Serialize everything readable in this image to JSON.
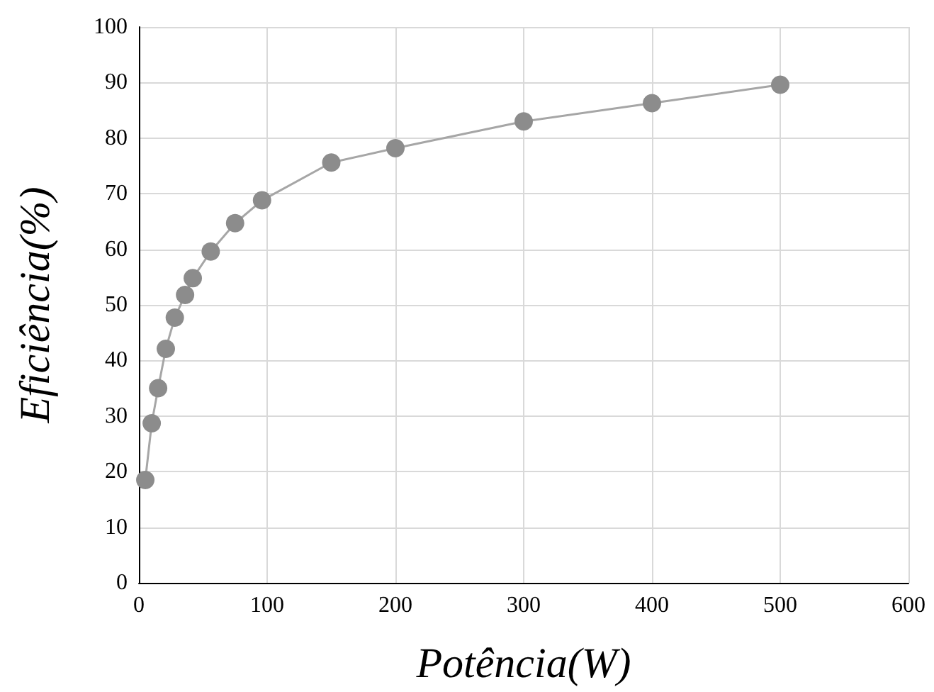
{
  "chart_data": {
    "type": "line",
    "xlabel": "Potência(W)",
    "ylabel": "Eficiência(%)",
    "x": [
      5,
      10,
      15,
      21,
      28,
      36,
      42,
      56,
      75,
      96,
      150,
      200,
      300,
      400,
      500
    ],
    "series": [
      {
        "color": "#8c8c8c",
        "values": [
          18.5,
          28.7,
          35,
          42.1,
          47.7,
          51.8,
          54.8,
          59.6,
          64.7,
          68.8,
          75.6,
          78.2,
          83,
          86.3,
          89.6
        ]
      }
    ],
    "xlim": [
      0,
      600
    ],
    "xticks": [
      0,
      100,
      200,
      300,
      400,
      500,
      600
    ],
    "ylim": [
      0,
      100
    ],
    "yticks": [
      0,
      10,
      20,
      30,
      40,
      50,
      60,
      70,
      80,
      90,
      100
    ],
    "grid": true,
    "marker": "circle",
    "line_style": "solid"
  }
}
